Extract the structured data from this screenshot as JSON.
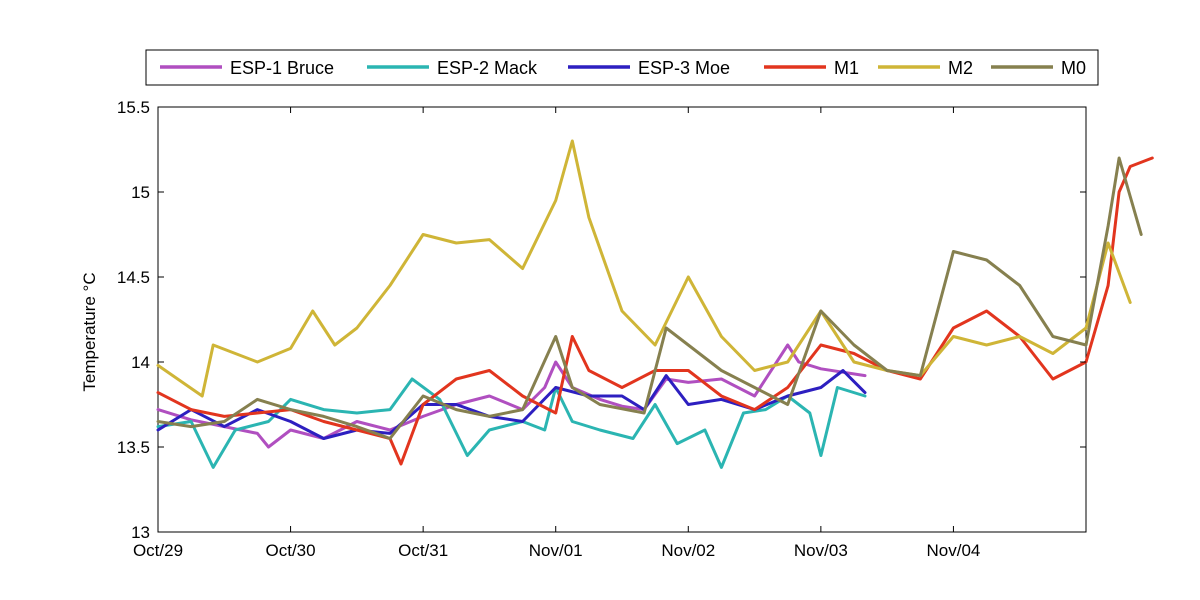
{
  "chart_data": {
    "type": "line",
    "ylabel": "Temperature °C",
    "ylim": [
      13,
      15.5
    ],
    "yticks": [
      13,
      13.5,
      14,
      14.5,
      15,
      15.5
    ],
    "ytick_labels": [
      "13",
      "13.5",
      "14",
      "14.5",
      "15",
      "15.5"
    ],
    "xlim": [
      "2011-10-29",
      "2011-11-05"
    ],
    "xticks": [
      "2011-10-29",
      "2011-10-30",
      "2011-10-31",
      "2011-11-01",
      "2011-11-02",
      "2011-11-03",
      "2011-11-04"
    ],
    "xtick_labels": [
      "Oct/29",
      "Oct/30",
      "Oct/31",
      "Nov/01",
      "Nov/02",
      "Nov/03",
      "Nov/04"
    ],
    "grid": false,
    "legend_placement": "top, outside plot, single row",
    "series": [
      {
        "name": "ESP-1 Bruce",
        "color": "#b04fc0",
        "points": [
          [
            "2011-10-29 00:00",
            13.72
          ],
          [
            "2011-10-29 06:00",
            13.66
          ],
          [
            "2011-10-29 12:00",
            13.62
          ],
          [
            "2011-10-29 18:00",
            13.58
          ],
          [
            "2011-10-29 20:00",
            13.5
          ],
          [
            "2011-10-30 00:00",
            13.6
          ],
          [
            "2011-10-30 06:00",
            13.55
          ],
          [
            "2011-10-30 12:00",
            13.65
          ],
          [
            "2011-10-30 18:00",
            13.6
          ],
          [
            "2011-10-31 00:00",
            13.68
          ],
          [
            "2011-10-31 06:00",
            13.75
          ],
          [
            "2011-10-31 12:00",
            13.8
          ],
          [
            "2011-10-31 18:00",
            13.72
          ],
          [
            "2011-10-31 22:00",
            13.85
          ],
          [
            "2011-11-01 00:00",
            14.0
          ],
          [
            "2011-11-01 03:00",
            13.85
          ],
          [
            "2011-11-01 08:00",
            13.78
          ],
          [
            "2011-11-01 12:00",
            13.74
          ],
          [
            "2011-11-01 16:00",
            13.72
          ],
          [
            "2011-11-01 20:00",
            13.9
          ],
          [
            "2011-11-02 00:00",
            13.88
          ],
          [
            "2011-11-02 06:00",
            13.9
          ],
          [
            "2011-11-02 12:00",
            13.8
          ],
          [
            "2011-11-02 18:00",
            14.1
          ],
          [
            "2011-11-02 20:00",
            14.0
          ],
          [
            "2011-11-03 00:00",
            13.96
          ],
          [
            "2011-11-03 08:00",
            13.92
          ]
        ]
      },
      {
        "name": "ESP-2 Mack",
        "color": "#2bb5b2",
        "points": [
          [
            "2011-10-29 00:00",
            13.62
          ],
          [
            "2011-10-29 06:00",
            13.65
          ],
          [
            "2011-10-29 10:00",
            13.38
          ],
          [
            "2011-10-29 14:00",
            13.6
          ],
          [
            "2011-10-29 20:00",
            13.65
          ],
          [
            "2011-10-30 00:00",
            13.78
          ],
          [
            "2011-10-30 06:00",
            13.72
          ],
          [
            "2011-10-30 12:00",
            13.7
          ],
          [
            "2011-10-30 18:00",
            13.72
          ],
          [
            "2011-10-30 22:00",
            13.9
          ],
          [
            "2011-10-31 03:00",
            13.78
          ],
          [
            "2011-10-31 08:00",
            13.45
          ],
          [
            "2011-10-31 12:00",
            13.6
          ],
          [
            "2011-10-31 18:00",
            13.65
          ],
          [
            "2011-10-31 22:00",
            13.6
          ],
          [
            "2011-11-01 00:00",
            13.85
          ],
          [
            "2011-11-01 03:00",
            13.65
          ],
          [
            "2011-11-01 08:00",
            13.6
          ],
          [
            "2011-11-01 14:00",
            13.55
          ],
          [
            "2011-11-01 18:00",
            13.75
          ],
          [
            "2011-11-01 22:00",
            13.52
          ],
          [
            "2011-11-02 03:00",
            13.6
          ],
          [
            "2011-11-02 06:00",
            13.38
          ],
          [
            "2011-11-02 10:00",
            13.7
          ],
          [
            "2011-11-02 14:00",
            13.72
          ],
          [
            "2011-11-02 18:00",
            13.8
          ],
          [
            "2011-11-02 22:00",
            13.7
          ],
          [
            "2011-11-03 00:00",
            13.45
          ],
          [
            "2011-11-03 03:00",
            13.85
          ],
          [
            "2011-11-03 08:00",
            13.8
          ]
        ]
      },
      {
        "name": "ESP-3 Moe",
        "color": "#2d1fc0",
        "points": [
          [
            "2011-10-29 00:00",
            13.6
          ],
          [
            "2011-10-29 06:00",
            13.72
          ],
          [
            "2011-10-29 12:00",
            13.62
          ],
          [
            "2011-10-29 18:00",
            13.72
          ],
          [
            "2011-10-30 00:00",
            13.65
          ],
          [
            "2011-10-30 06:00",
            13.55
          ],
          [
            "2011-10-30 12:00",
            13.6
          ],
          [
            "2011-10-30 18:00",
            13.58
          ],
          [
            "2011-10-31 00:00",
            13.75
          ],
          [
            "2011-10-31 06:00",
            13.75
          ],
          [
            "2011-10-31 12:00",
            13.68
          ],
          [
            "2011-10-31 18:00",
            13.65
          ],
          [
            "2011-11-01 00:00",
            13.85
          ],
          [
            "2011-11-01 06:00",
            13.8
          ],
          [
            "2011-11-01 12:00",
            13.8
          ],
          [
            "2011-11-01 16:00",
            13.72
          ],
          [
            "2011-11-01 20:00",
            13.92
          ],
          [
            "2011-11-02 00:00",
            13.75
          ],
          [
            "2011-11-02 06:00",
            13.78
          ],
          [
            "2011-11-02 12:00",
            13.72
          ],
          [
            "2011-11-02 18:00",
            13.8
          ],
          [
            "2011-11-03 00:00",
            13.85
          ],
          [
            "2011-11-03 04:00",
            13.95
          ],
          [
            "2011-11-03 08:00",
            13.82
          ]
        ]
      },
      {
        "name": "M1",
        "color": "#e2351e",
        "points": [
          [
            "2011-10-29 00:00",
            13.82
          ],
          [
            "2011-10-29 06:00",
            13.72
          ],
          [
            "2011-10-29 12:00",
            13.68
          ],
          [
            "2011-10-29 18:00",
            13.7
          ],
          [
            "2011-10-30 00:00",
            13.72
          ],
          [
            "2011-10-30 06:00",
            13.65
          ],
          [
            "2011-10-30 12:00",
            13.6
          ],
          [
            "2011-10-30 18:00",
            13.55
          ],
          [
            "2011-10-30 20:00",
            13.4
          ],
          [
            "2011-10-31 00:00",
            13.75
          ],
          [
            "2011-10-31 06:00",
            13.9
          ],
          [
            "2011-10-31 12:00",
            13.95
          ],
          [
            "2011-10-31 18:00",
            13.8
          ],
          [
            "2011-11-01 00:00",
            13.7
          ],
          [
            "2011-11-01 03:00",
            14.15
          ],
          [
            "2011-11-01 06:00",
            13.95
          ],
          [
            "2011-11-01 12:00",
            13.85
          ],
          [
            "2011-11-01 18:00",
            13.95
          ],
          [
            "2011-11-02 00:00",
            13.95
          ],
          [
            "2011-11-02 06:00",
            13.8
          ],
          [
            "2011-11-02 12:00",
            13.72
          ],
          [
            "2011-11-02 18:00",
            13.85
          ],
          [
            "2011-11-03 00:00",
            14.1
          ],
          [
            "2011-11-03 06:00",
            14.05
          ],
          [
            "2011-11-03 12:00",
            13.95
          ],
          [
            "2011-11-03 18:00",
            13.9
          ],
          [
            "2011-11-04 00:00",
            14.2
          ],
          [
            "2011-11-04 06:00",
            14.3
          ],
          [
            "2011-11-04 12:00",
            14.15
          ],
          [
            "2011-11-04 18:00",
            13.9
          ],
          [
            "2011-11-05 00:00",
            14.0
          ],
          [
            "2011-11-05 04:00",
            14.45
          ],
          [
            "2011-11-05 06:00",
            15.0
          ],
          [
            "2011-11-05 08:00",
            15.15
          ],
          [
            "2011-11-05 12:00",
            15.2
          ]
        ]
      },
      {
        "name": "M2",
        "color": "#cfb537",
        "points": [
          [
            "2011-10-29 00:00",
            13.98
          ],
          [
            "2011-10-29 08:00",
            13.8
          ],
          [
            "2011-10-29 10:00",
            14.1
          ],
          [
            "2011-10-29 18:00",
            14.0
          ],
          [
            "2011-10-30 00:00",
            14.08
          ],
          [
            "2011-10-30 04:00",
            14.3
          ],
          [
            "2011-10-30 08:00",
            14.1
          ],
          [
            "2011-10-30 12:00",
            14.2
          ],
          [
            "2011-10-30 18:00",
            14.45
          ],
          [
            "2011-10-31 00:00",
            14.75
          ],
          [
            "2011-10-31 06:00",
            14.7
          ],
          [
            "2011-10-31 12:00",
            14.72
          ],
          [
            "2011-10-31 18:00",
            14.55
          ],
          [
            "2011-11-01 00:00",
            14.95
          ],
          [
            "2011-11-01 03:00",
            15.3
          ],
          [
            "2011-11-01 06:00",
            14.85
          ],
          [
            "2011-11-01 12:00",
            14.3
          ],
          [
            "2011-11-01 18:00",
            14.1
          ],
          [
            "2011-11-02 00:00",
            14.5
          ],
          [
            "2011-11-02 06:00",
            14.15
          ],
          [
            "2011-11-02 12:00",
            13.95
          ],
          [
            "2011-11-02 18:00",
            14.0
          ],
          [
            "2011-11-03 00:00",
            14.3
          ],
          [
            "2011-11-03 06:00",
            14.0
          ],
          [
            "2011-11-03 12:00",
            13.95
          ],
          [
            "2011-11-03 18:00",
            13.92
          ],
          [
            "2011-11-04 00:00",
            14.15
          ],
          [
            "2011-11-04 06:00",
            14.1
          ],
          [
            "2011-11-04 12:00",
            14.15
          ],
          [
            "2011-11-04 18:00",
            14.05
          ],
          [
            "2011-11-05 00:00",
            14.2
          ],
          [
            "2011-11-05 04:00",
            14.7
          ],
          [
            "2011-11-05 08:00",
            14.35
          ]
        ]
      },
      {
        "name": "M0",
        "color": "#86804f",
        "points": [
          [
            "2011-10-29 00:00",
            13.65
          ],
          [
            "2011-10-29 06:00",
            13.62
          ],
          [
            "2011-10-29 12:00",
            13.65
          ],
          [
            "2011-10-29 18:00",
            13.78
          ],
          [
            "2011-10-30 00:00",
            13.72
          ],
          [
            "2011-10-30 06:00",
            13.68
          ],
          [
            "2011-10-30 12:00",
            13.62
          ],
          [
            "2011-10-30 18:00",
            13.55
          ],
          [
            "2011-10-31 00:00",
            13.8
          ],
          [
            "2011-10-31 06:00",
            13.72
          ],
          [
            "2011-10-31 12:00",
            13.68
          ],
          [
            "2011-10-31 18:00",
            13.72
          ],
          [
            "2011-11-01 00:00",
            14.15
          ],
          [
            "2011-11-01 03:00",
            13.85
          ],
          [
            "2011-11-01 08:00",
            13.75
          ],
          [
            "2011-11-01 16:00",
            13.7
          ],
          [
            "2011-11-01 20:00",
            14.2
          ],
          [
            "2011-11-02 00:00",
            14.1
          ],
          [
            "2011-11-02 06:00",
            13.95
          ],
          [
            "2011-11-02 12:00",
            13.85
          ],
          [
            "2011-11-02 18:00",
            13.75
          ],
          [
            "2011-11-03 00:00",
            14.3
          ],
          [
            "2011-11-03 06:00",
            14.1
          ],
          [
            "2011-11-03 12:00",
            13.95
          ],
          [
            "2011-11-03 18:00",
            13.92
          ],
          [
            "2011-11-04 00:00",
            14.65
          ],
          [
            "2011-11-04 06:00",
            14.6
          ],
          [
            "2011-11-04 12:00",
            14.45
          ],
          [
            "2011-11-04 18:00",
            14.15
          ],
          [
            "2011-11-05 00:00",
            14.1
          ],
          [
            "2011-11-05 04:00",
            14.8
          ],
          [
            "2011-11-05 06:00",
            15.2
          ],
          [
            "2011-11-05 10:00",
            14.75
          ]
        ]
      }
    ]
  }
}
